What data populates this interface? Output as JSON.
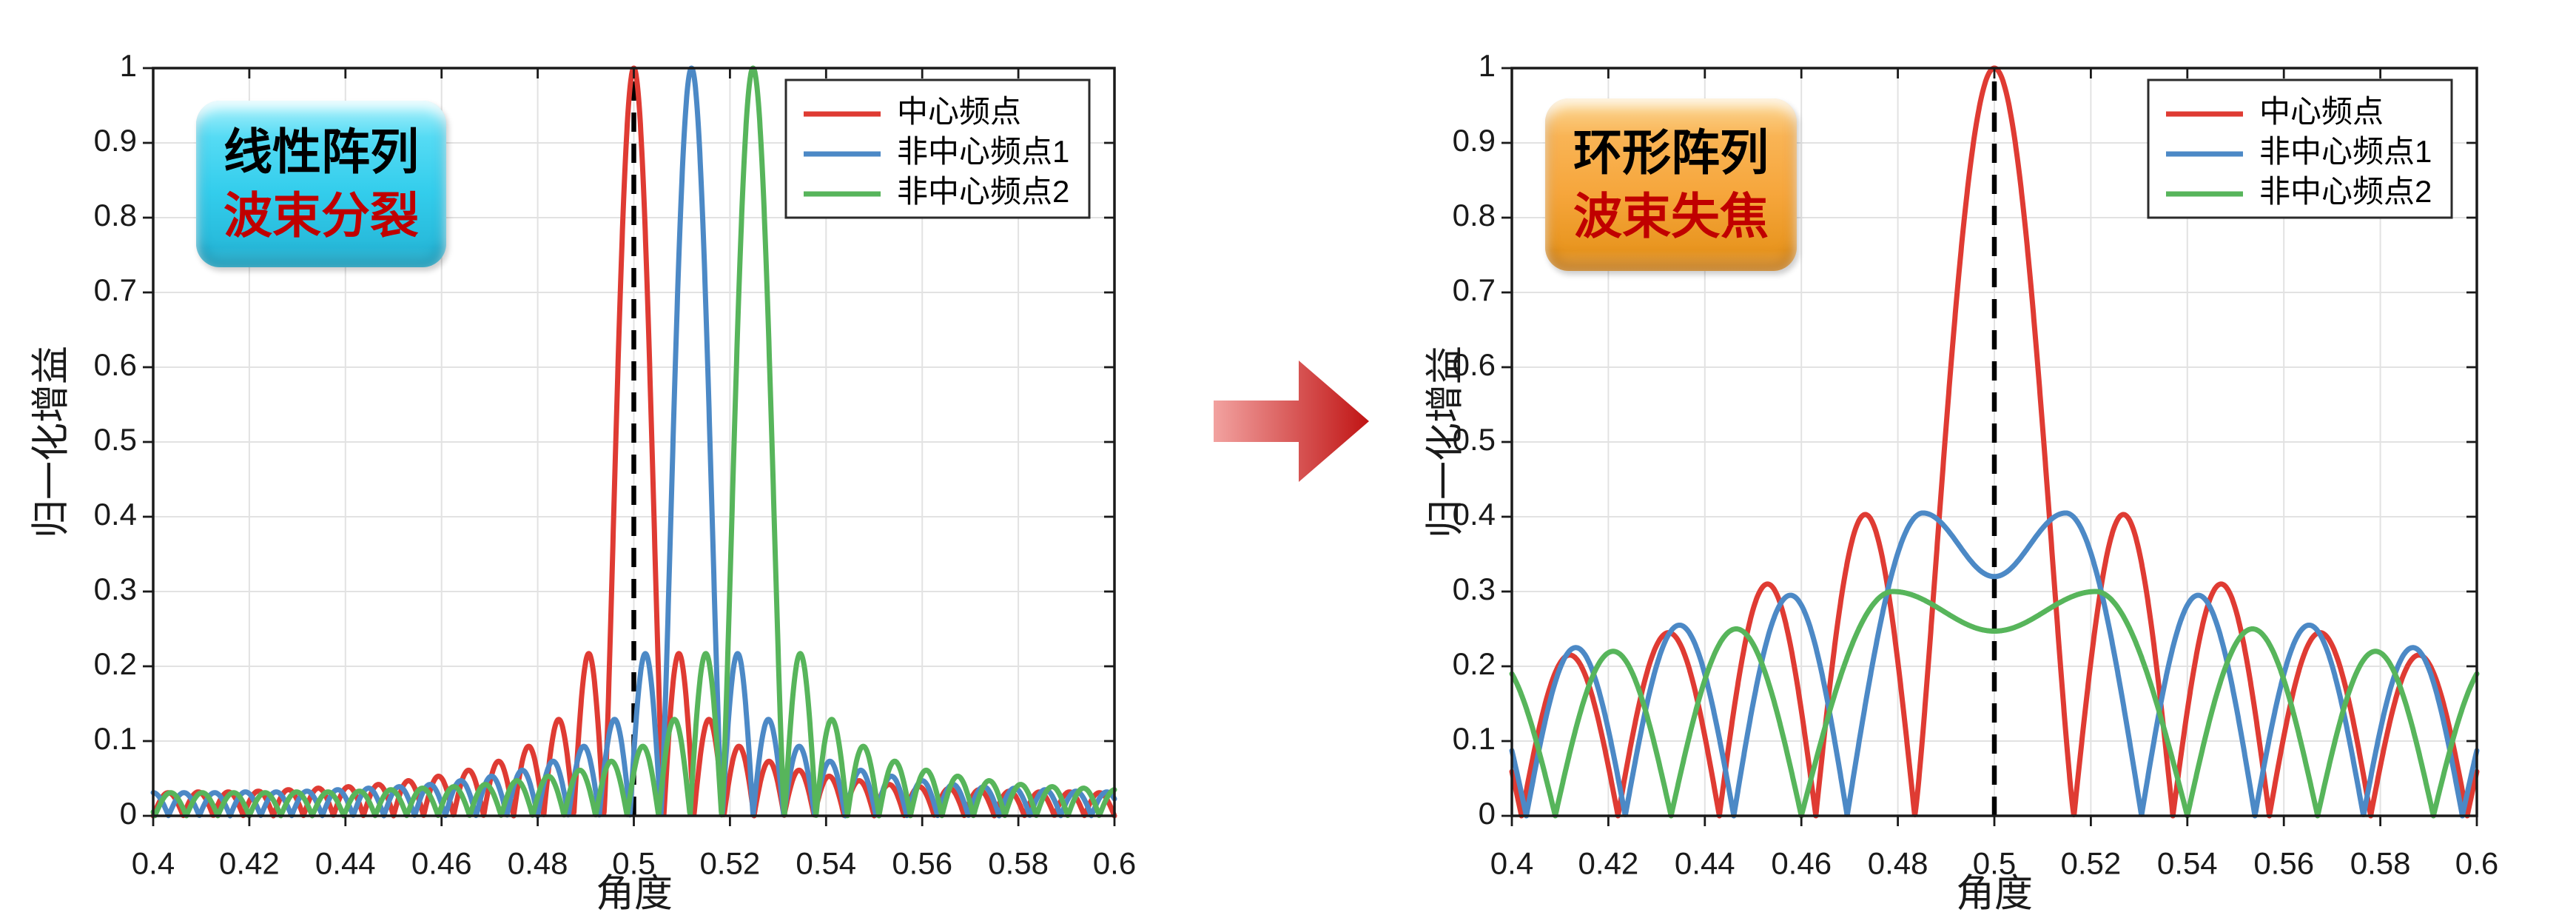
{
  "figure_background": "#FFFFFF",
  "arrow": {
    "meaning": "transformation from linear array to circular array",
    "direction": "right",
    "color_light": "#F2A2A0",
    "color_dark": "#C01414"
  },
  "chart_data": [
    {
      "id": "linear-array-pattern",
      "type": "line",
      "badge": {
        "line1": "线性阵列",
        "line2": "波束分裂",
        "bg": "#33CDEC",
        "line1_color": "#000000",
        "line2_color": "#C00000"
      },
      "xlabel": "角度",
      "ylabel": "归一化增益",
      "xlim": [
        0.4,
        0.6
      ],
      "ylim": [
        0,
        1
      ],
      "xticks": [
        0.4,
        0.42,
        0.44,
        0.46,
        0.48,
        0.5,
        0.52,
        0.54,
        0.56,
        0.58,
        0.6
      ],
      "xtick_labels": [
        "0.4",
        "0.42",
        "0.44",
        "0.46",
        "0.48",
        "0.5",
        "0.52",
        "0.54",
        "0.56",
        "0.58",
        "0.6"
      ],
      "yticks": [
        0,
        0.1,
        0.2,
        0.3,
        0.4,
        0.5,
        0.6,
        0.7,
        0.8,
        0.9,
        1
      ],
      "ytick_labels": [
        "0",
        "0.1",
        "0.2",
        "0.3",
        "0.4",
        "0.5",
        "0.6",
        "0.7",
        "0.8",
        "0.9",
        "1"
      ],
      "grid": true,
      "grid_color": "#E2E2E2",
      "ref_line": {
        "x": 0.5,
        "style": "dashed",
        "color": "#000000"
      },
      "legend": {
        "position": "top-right",
        "entries": [
          {
            "label": "中心频点",
            "color": "#DF3B33"
          },
          {
            "label": "非中心频点1",
            "color": "#4C89C6"
          },
          {
            "label": "非中心频点2",
            "color": "#57B55B"
          }
        ]
      },
      "series": [
        {
          "name": "中心频点",
          "color": "#DF3B33",
          "model": "linear_array_factor",
          "center": 0.5,
          "null_spacing": 0.00625,
          "main_peak": 1.0,
          "sidelobe_heights": [
            0.217,
            0.129,
            0.093,
            0.073,
            0.061,
            0.053,
            0.047,
            0.042,
            0.039,
            0.037,
            0.035,
            0.033,
            0.032,
            0.032,
            0.031,
            0.031,
            0.031,
            0.031,
            0.031,
            0.031
          ]
        },
        {
          "name": "非中心频点1",
          "color": "#4C89C6",
          "model": "linear_array_factor",
          "center": 0.512,
          "null_spacing": 0.0064,
          "main_peak": 1.0,
          "sidelobe_heights": [
            0.217,
            0.129,
            0.093,
            0.073,
            0.061,
            0.053,
            0.047,
            0.042,
            0.039,
            0.037,
            0.035,
            0.033,
            0.032,
            0.032,
            0.031,
            0.031,
            0.031,
            0.031,
            0.031,
            0.031
          ]
        },
        {
          "name": "非中心频点2",
          "color": "#57B55B",
          "model": "linear_array_factor",
          "center": 0.5248,
          "null_spacing": 0.00655,
          "main_peak": 1.0,
          "sidelobe_heights": [
            0.217,
            0.129,
            0.093,
            0.073,
            0.061,
            0.053,
            0.047,
            0.042,
            0.039,
            0.037,
            0.035,
            0.033,
            0.032,
            0.032,
            0.031,
            0.031,
            0.031,
            0.031,
            0.031,
            0.031
          ]
        }
      ]
    },
    {
      "id": "circular-array-pattern",
      "type": "line",
      "badge": {
        "line1": "环形阵列",
        "line2": "波束失焦",
        "bg": "#F6A63C",
        "line1_color": "#000000",
        "line2_color": "#C00000"
      },
      "xlabel": "角度",
      "ylabel": "归一化增益",
      "xlim": [
        0.4,
        0.6
      ],
      "ylim": [
        0,
        1
      ],
      "xticks": [
        0.4,
        0.42,
        0.44,
        0.46,
        0.48,
        0.5,
        0.52,
        0.54,
        0.56,
        0.58,
        0.6
      ],
      "xtick_labels": [
        "0.4",
        "0.42",
        "0.44",
        "0.46",
        "0.48",
        "0.5",
        "0.52",
        "0.54",
        "0.56",
        "0.58",
        "0.6"
      ],
      "yticks": [
        0,
        0.1,
        0.2,
        0.3,
        0.4,
        0.5,
        0.6,
        0.7,
        0.8,
        0.9,
        1
      ],
      "ytick_labels": [
        "0",
        "0.1",
        "0.2",
        "0.3",
        "0.4",
        "0.5",
        "0.6",
        "0.7",
        "0.8",
        "0.9",
        "1"
      ],
      "grid": true,
      "grid_color": "#E2E2E2",
      "ref_line": {
        "x": 0.5,
        "style": "dashed",
        "color": "#000000"
      },
      "legend": {
        "position": "top-right",
        "entries": [
          {
            "label": "中心频点",
            "color": "#DF3B33"
          },
          {
            "label": "非中心频点1",
            "color": "#4C89C6"
          },
          {
            "label": "非中心频点2",
            "color": "#57B55B"
          }
        ]
      },
      "series": [
        {
          "name": "中心频点",
          "color": "#DF3B33",
          "model": "ring_main",
          "center": 0.5,
          "main_peak": 1.0,
          "main_half_width": 0.0165,
          "lobes": [
            [
              0.0165,
              0.037,
              0.403
            ],
            [
              0.037,
              0.057,
              0.31
            ],
            [
              0.057,
              0.078,
              0.245
            ],
            [
              0.078,
              0.098,
              0.215
            ],
            [
              0.098,
              0.12,
              0.21
            ]
          ]
        },
        {
          "name": "非中心频点1",
          "color": "#4C89C6",
          "model": "ring_defocused",
          "center": 0.5,
          "peak": 0.405,
          "peak_offset": 0.0148,
          "dip": 0.32,
          "inner_null": 0.0305,
          "lobes": [
            [
              0.0305,
              0.054,
              0.295
            ],
            [
              0.054,
              0.0765,
              0.255
            ],
            [
              0.0765,
              0.097,
              0.225
            ],
            [
              0.097,
              0.119,
              0.21
            ]
          ]
        },
        {
          "name": "非中心频点2",
          "color": "#57B55B",
          "model": "ring_defocused",
          "center": 0.5,
          "peak": 0.3,
          "peak_offset": 0.021,
          "dip": 0.247,
          "inner_null": 0.04,
          "lobes": [
            [
              0.04,
              0.067,
              0.25
            ],
            [
              0.067,
              0.091,
              0.22
            ],
            [
              0.091,
              0.116,
              0.21
            ]
          ]
        }
      ]
    }
  ]
}
